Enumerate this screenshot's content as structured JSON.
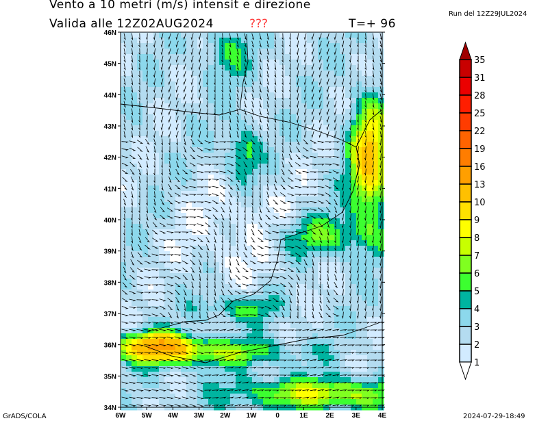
{
  "title": {
    "line1": "Vento a 10 metri (m/s) intensit    e direzione",
    "valid": "Valida alle 12Z02AUG2024",
    "unknown_marker": "???",
    "forecast_step": "T=+ 96",
    "run": "Run del 12Z29JUL2024"
  },
  "map": {
    "lat_labels": [
      "46N",
      "45N",
      "44N",
      "43N",
      "42N",
      "41N",
      "40N",
      "39N",
      "38N",
      "37N",
      "36N",
      "35N",
      "34N"
    ],
    "lon_labels": [
      "6W",
      "5W",
      "4W",
      "3W",
      "2W",
      "1W",
      "0",
      "1E",
      "2E",
      "3E",
      "4E"
    ]
  },
  "colorbar": {
    "labels": [
      "35",
      "31",
      "28",
      "25",
      "22",
      "19",
      "16",
      "13",
      "10",
      "9",
      "8",
      "7",
      "6",
      "5",
      "4",
      "3",
      "2",
      "1"
    ],
    "colors": [
      "#a00000",
      "#c80000",
      "#eb0000",
      "#ff1e00",
      "#ff3c00",
      "#ff6400",
      "#ff7d00",
      "#ff9f00",
      "#ffc000",
      "#ffe100",
      "#ffff00",
      "#c8ff00",
      "#80ff20",
      "#3cff30",
      "#00b4a0",
      "#8cd8ec",
      "#b4dcf0",
      "#d2ebff",
      "#ffffff"
    ]
  },
  "footer": {
    "left": "GrADS/COLA",
    "right": "2024-07-29-18:49"
  }
}
